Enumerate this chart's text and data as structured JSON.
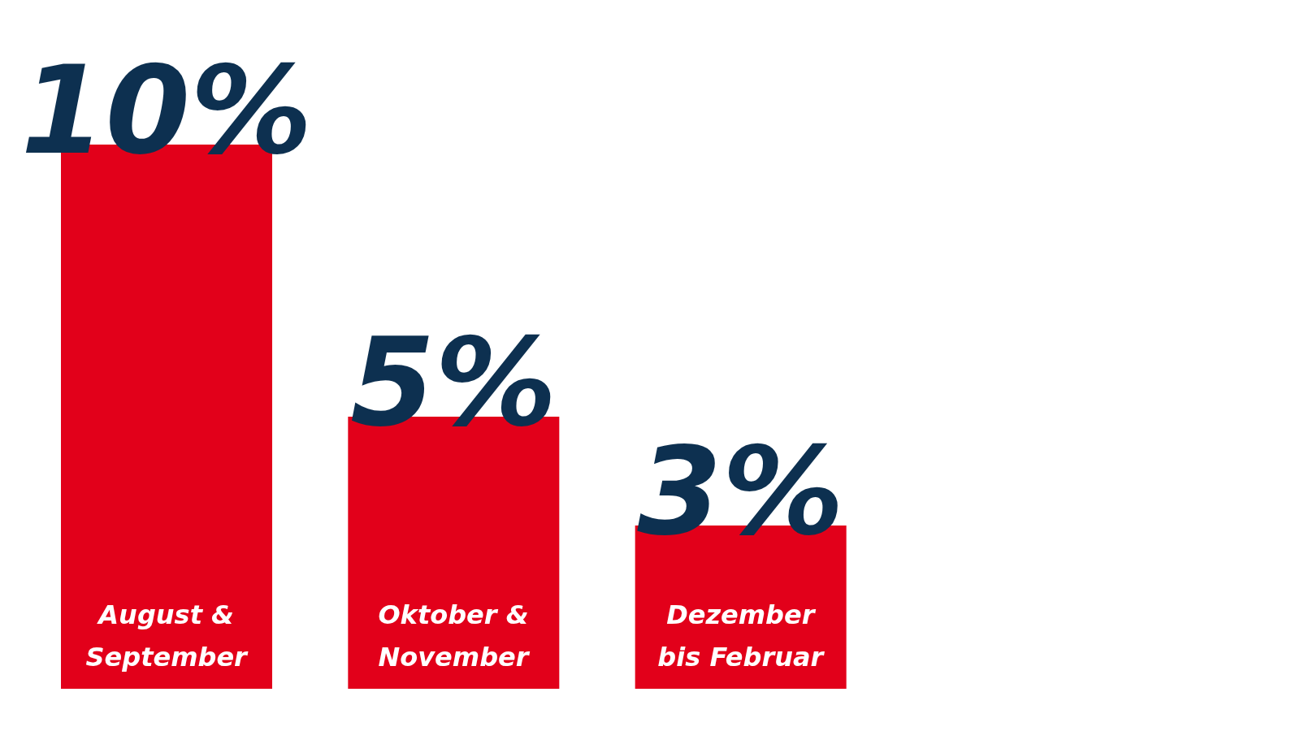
{
  "chart_data": {
    "type": "bar",
    "categories": [
      "August &\nSeptember",
      "Oktober &\nNovember",
      "Dezember\nbis Februar"
    ],
    "values": [
      10,
      5,
      3
    ],
    "value_labels": [
      "10%",
      "5%",
      "3%"
    ],
    "color": "#e2001a",
    "grid": false,
    "tick_labels": "x"
  }
}
